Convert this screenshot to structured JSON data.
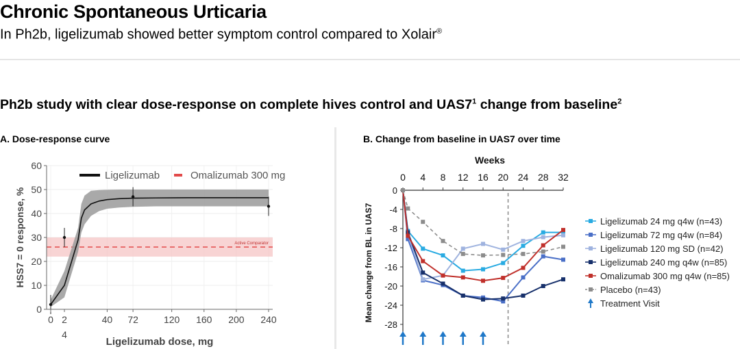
{
  "header": {
    "title": "Chronic Spontaneous Urticaria",
    "subtitle": "In Ph2b, ligelizumab showed better symptom control compared to Xolair",
    "registered_mark": "®"
  },
  "section": {
    "heading": "Ph2b study with clear dose-response on complete hives control and UAS7",
    "sup1": "1",
    "heading_mid": " change from baseline",
    "sup2": "2"
  },
  "colors": {
    "ligelizumab_24": "#29abe2",
    "ligelizumab_72": "#4a6fc7",
    "ligelizumab_120": "#9fb3df",
    "ligelizumab_240": "#17306b",
    "omalizumab": "#c0302b",
    "placebo": "#8c8c8c",
    "treatment_arrow": "#1f78c8",
    "comparator_band": "#f6c6c6",
    "comparator_line": "#e24a4a"
  },
  "chart_data": [
    {
      "type": "line",
      "panel_title": "A. Dose-response curve",
      "xlabel": "Ligelizumab dose, mg",
      "ylabel": "HSS7 = 0 response, %",
      "xlim": [
        0,
        240
      ],
      "ylim": [
        0,
        60
      ],
      "x_ticks": [
        "0",
        "2",
        "4",
        "40",
        "72",
        "120",
        "160",
        "200",
        "240"
      ],
      "y_ticks": [
        0,
        10,
        20,
        30,
        40,
        50,
        60
      ],
      "legend": [
        {
          "name": "Ligelizumab",
          "color": "#111111"
        },
        {
          "name": "Omalizumab 300 mg",
          "color": "#e24a4a"
        }
      ],
      "comparator_label": "Active Comparator",
      "comparator": {
        "value": 26,
        "band": [
          22,
          30
        ]
      },
      "series": [
        {
          "name": "Ligelizumab",
          "x": [
            0,
            2,
            4,
            8,
            12,
            20,
            30,
            40,
            55,
            72,
            100,
            140,
            180,
            240
          ],
          "y": [
            2,
            10,
            29,
            38,
            41.5,
            44,
            45.2,
            45.8,
            46.2,
            46.4,
            46.5,
            46.6,
            46.6,
            46.6
          ],
          "ci_upper": [
            4,
            16,
            34,
            44,
            47.5,
            49.5,
            49.8,
            49.9,
            50,
            50,
            50,
            50,
            50,
            50
          ],
          "ci_lower": [
            1,
            5,
            24,
            32,
            35.5,
            39,
            41,
            42,
            42.5,
            42.8,
            43,
            43,
            43,
            43
          ]
        }
      ],
      "observed_points": [
        {
          "x": 0,
          "y": 2
        },
        {
          "x": 2,
          "y": 30
        },
        {
          "x": 72,
          "y": 47
        },
        {
          "x": 240,
          "y": 43
        }
      ]
    },
    {
      "type": "line",
      "panel_title": "B. Change from baseline in UAS7 over time",
      "xlabel": "Weeks",
      "ylabel": "Mean change from BL in UAS7",
      "xlim": [
        0,
        32
      ],
      "ylim": [
        -28,
        0
      ],
      "x_ticks": [
        0,
        4,
        8,
        12,
        16,
        20,
        24,
        28,
        32
      ],
      "y_ticks": [
        0,
        -4,
        -8,
        -12,
        -16,
        -20,
        -24,
        -28
      ],
      "end_of_treatment_week": 21,
      "treatment_visits": [
        0,
        4,
        8,
        12,
        16
      ],
      "legend_treatment_visit": "Treatment Visit",
      "series": [
        {
          "name": "Ligelizumab 24 mg q4w (n=43)",
          "color": "#29abe2",
          "dashed": false,
          "x": [
            0,
            1,
            4,
            8,
            12,
            16,
            20,
            24,
            28,
            32
          ],
          "y": [
            0,
            -8.5,
            -12.2,
            -13.6,
            -16.8,
            -16.5,
            -15.2,
            -11.6,
            -8.8,
            -8.8
          ]
        },
        {
          "name": "Ligelizumab 72 mg q4w (n=84)",
          "color": "#4a6fc7",
          "dashed": false,
          "x": [
            0,
            1,
            4,
            8,
            12,
            16,
            20,
            24,
            28,
            32
          ],
          "y": [
            0,
            -10.2,
            -18.8,
            -19.8,
            -22.0,
            -22.4,
            -23.2,
            -18.2,
            -13.8,
            -14.5
          ]
        },
        {
          "name": "Ligelizumab 120 mg SD (n=42)",
          "color": "#9fb3df",
          "dashed": false,
          "x": [
            0,
            1,
            4,
            8,
            12,
            16,
            20,
            24,
            28,
            32
          ],
          "y": [
            0,
            -9.2,
            -18.6,
            -17.8,
            -12.2,
            -11.2,
            -12.4,
            -10.6,
            -9.8,
            -9.4
          ]
        },
        {
          "name": "Ligelizumab 240 mg q4w (n=85)",
          "color": "#17306b",
          "dashed": false,
          "x": [
            0,
            1,
            4,
            8,
            12,
            16,
            20,
            24,
            28,
            32
          ],
          "y": [
            0,
            -8.8,
            -17.2,
            -19.5,
            -22.0,
            -22.8,
            -22.6,
            -22.0,
            -20.0,
            -18.6
          ]
        },
        {
          "name": "Omalizumab 300 mg q4w (n=85)",
          "color": "#c0302b",
          "dashed": false,
          "x": [
            0,
            1,
            4,
            8,
            12,
            16,
            20,
            24,
            28,
            32
          ],
          "y": [
            0,
            -9.5,
            -14.8,
            -17.8,
            -18.2,
            -18.9,
            -18.3,
            -16.2,
            -11.5,
            -8.3
          ]
        },
        {
          "name": "Placebo (n=43)",
          "color": "#8c8c8c",
          "dashed": true,
          "x": [
            0,
            1,
            4,
            8,
            12,
            16,
            20,
            24,
            28,
            32
          ],
          "y": [
            0,
            -3.8,
            -6.6,
            -10.6,
            -13.3,
            -13.6,
            -13.5,
            -13.3,
            -12.8,
            -11.8
          ]
        }
      ]
    }
  ]
}
